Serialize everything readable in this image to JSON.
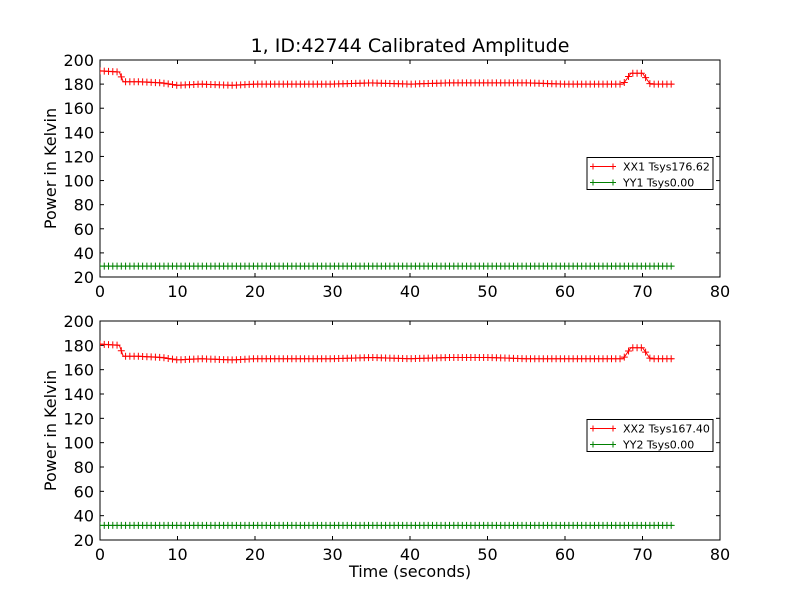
{
  "chart_data": [
    {
      "type": "line",
      "title": "1, ID:42744 Calibrated Amplitude",
      "xlabel": "",
      "ylabel": "Power in Kelvin",
      "xlim": [
        0,
        80
      ],
      "ylim": [
        20,
        200
      ],
      "xticks": [
        0,
        10,
        20,
        30,
        40,
        50,
        60,
        70,
        80
      ],
      "yticks": [
        20,
        40,
        60,
        80,
        100,
        120,
        140,
        160,
        180,
        200
      ],
      "grid": false,
      "legend_position": "center-right",
      "marker": "plus",
      "series": [
        {
          "name": "XX1 Tsys176.62",
          "color": "#ff0000",
          "x": [
            0,
            2.5,
            3,
            5,
            8,
            10,
            13,
            17,
            20,
            25,
            30,
            35,
            40,
            45,
            50,
            55,
            60,
            65,
            67.5,
            68.5,
            70,
            71,
            74
          ],
          "y": [
            191,
            190,
            182,
            182,
            181,
            179,
            180,
            179,
            180,
            180,
            180,
            181,
            180,
            181,
            181,
            181,
            180,
            180,
            180,
            189,
            189,
            180,
            180
          ]
        },
        {
          "name": "YY1 Tsys0.00",
          "color": "#008000",
          "x": [
            0,
            74
          ],
          "y": [
            29,
            29
          ]
        }
      ]
    },
    {
      "type": "line",
      "title": "",
      "xlabel": "Time (seconds)",
      "ylabel": "Power in Kelvin",
      "xlim": [
        0,
        80
      ],
      "ylim": [
        20,
        200
      ],
      "xticks": [
        0,
        10,
        20,
        30,
        40,
        50,
        60,
        70,
        80
      ],
      "yticks": [
        20,
        40,
        60,
        80,
        100,
        120,
        140,
        160,
        180,
        200
      ],
      "grid": false,
      "legend_position": "center-right",
      "marker": "plus",
      "series": [
        {
          "name": "XX2 Tsys167.40",
          "color": "#ff0000",
          "x": [
            0,
            2.5,
            3,
            5,
            8,
            10,
            13,
            17,
            20,
            25,
            30,
            35,
            40,
            45,
            50,
            55,
            60,
            65,
            67.5,
            68.5,
            70,
            71,
            74
          ],
          "y": [
            181,
            180,
            171,
            171,
            170,
            168,
            169,
            168,
            169,
            169,
            169,
            170,
            169,
            170,
            170,
            169,
            169,
            169,
            169,
            178,
            178,
            169,
            169
          ]
        },
        {
          "name": "YY2 Tsys0.00",
          "color": "#008000",
          "x": [
            0,
            74
          ],
          "y": [
            32,
            32
          ]
        }
      ]
    }
  ]
}
